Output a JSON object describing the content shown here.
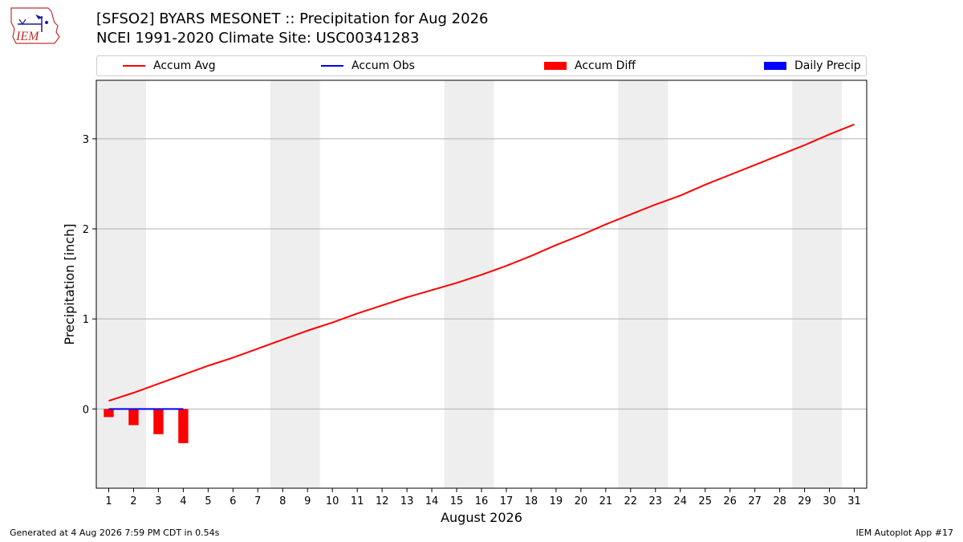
{
  "header": {
    "title_line1": "[SFSO2] BYARS MESONET :: Precipitation for Aug 2026",
    "title_line2": "NCEI 1991-2020 Climate Site: USC00341283",
    "logo_text": "IEM"
  },
  "colors": {
    "accum_avg": "#ff0000",
    "accum_obs": "#0000ff",
    "accum_diff": "#ff0000",
    "daily_precip": "#0000ff",
    "weekend_band": "#eeeeee",
    "grid": "#b0b0b0"
  },
  "legend": [
    {
      "label": "Accum Avg",
      "kind": "line",
      "color": "#ff0000"
    },
    {
      "label": "Accum Obs",
      "kind": "line",
      "color": "#0000ff"
    },
    {
      "label": "Accum Diff",
      "kind": "box",
      "color": "#ff0000"
    },
    {
      "label": "Daily Precip",
      "kind": "box",
      "color": "#0000ff"
    }
  ],
  "chart_data": {
    "type": "line",
    "xlabel": "August 2026",
    "ylabel": "Precipitation [inch]",
    "x": [
      1,
      2,
      3,
      4,
      5,
      6,
      7,
      8,
      9,
      10,
      11,
      12,
      13,
      14,
      15,
      16,
      17,
      18,
      19,
      20,
      21,
      22,
      23,
      24,
      25,
      26,
      27,
      28,
      29,
      30,
      31
    ],
    "xlim": [
      0.5,
      31.5
    ],
    "ylim": [
      -0.88,
      3.65
    ],
    "yticks": [
      0,
      1,
      2,
      3
    ],
    "grid": "horizontal",
    "weekend_bands": [
      [
        0.5,
        2.5
      ],
      [
        7.5,
        9.5
      ],
      [
        14.5,
        16.5
      ],
      [
        21.5,
        23.5
      ],
      [
        28.5,
        30.5
      ]
    ],
    "series": [
      {
        "name": "Accum Avg",
        "kind": "line",
        "values": [
          0.09,
          0.18,
          0.28,
          0.38,
          0.48,
          0.57,
          0.67,
          0.77,
          0.87,
          0.96,
          1.06,
          1.15,
          1.24,
          1.32,
          1.4,
          1.49,
          1.59,
          1.7,
          1.82,
          1.93,
          2.05,
          2.16,
          2.27,
          2.37,
          2.49,
          2.6,
          2.71,
          2.82,
          2.93,
          3.05,
          3.16
        ]
      },
      {
        "name": "Accum Obs",
        "kind": "line",
        "x": [
          1,
          2,
          3,
          4
        ],
        "values": [
          0,
          0,
          0,
          0
        ]
      },
      {
        "name": "Accum Diff",
        "kind": "bar",
        "x": [
          1,
          2,
          3,
          4
        ],
        "values": [
          -0.09,
          -0.18,
          -0.28,
          -0.38
        ]
      },
      {
        "name": "Daily Precip",
        "kind": "bar",
        "x": [
          1,
          2,
          3,
          4
        ],
        "values": [
          0,
          0,
          0,
          0
        ]
      }
    ]
  },
  "footer": {
    "left": "Generated at 4 Aug 2026 7:59 PM CDT in 0.54s",
    "right": "IEM Autoplot App #17"
  }
}
